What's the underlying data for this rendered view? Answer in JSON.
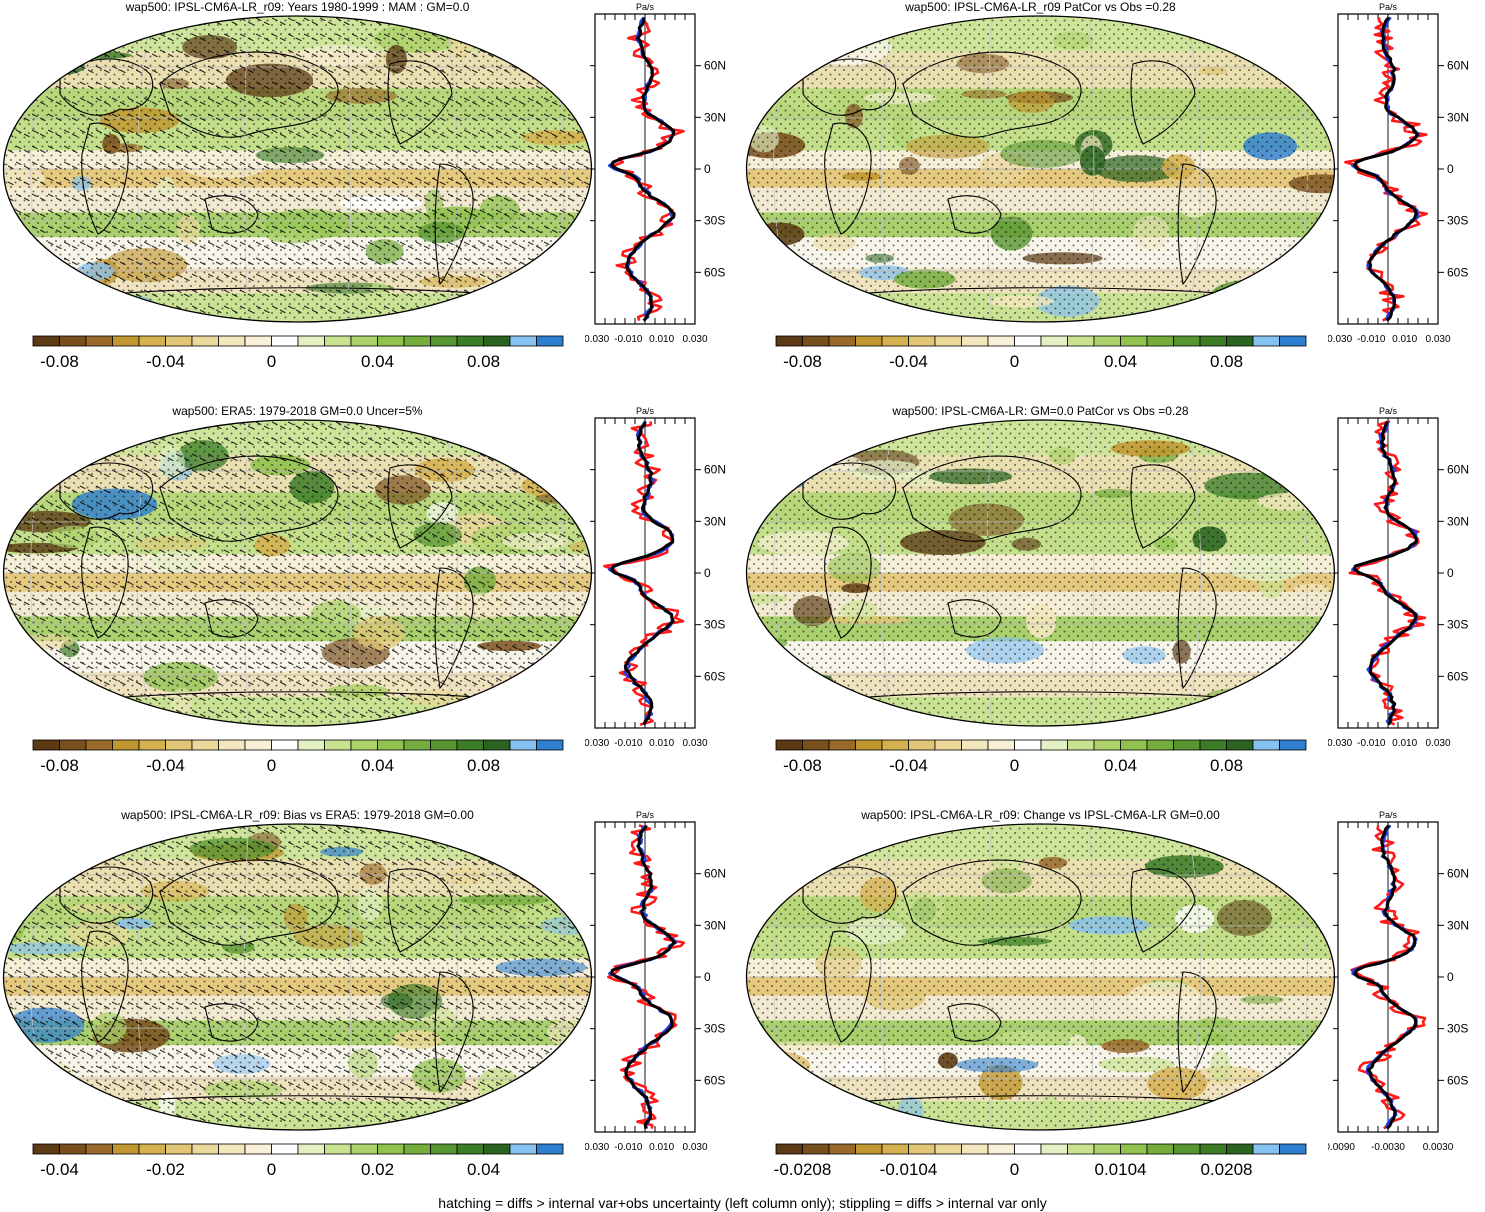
{
  "panels": [
    {
      "title": "wap500: IPSL-CM6A-LR_r09: Years 1980-1999 : MAM : GM=0.0",
      "hatched": true,
      "stippled": true,
      "seed": 3,
      "profile": {
        "units": "Pa/s",
        "lat_ticks": [
          "60N",
          "30N",
          "0",
          "30S",
          "60S"
        ],
        "x_ticks": [
          "-0.030",
          "-0.010",
          "0.010",
          "0.030"
        ],
        "xlim": [
          -0.03,
          0.03
        ],
        "lines": [
          "red",
          "blue",
          "black"
        ]
      },
      "colorbar": {
        "labels": [
          "-0.08",
          "-0.04",
          "0",
          "0.04",
          "0.08"
        ]
      }
    },
    {
      "title": "wap500: IPSL-CM6A-LR_r09 PatCor vs Obs =0.28",
      "hatched": false,
      "stippled": true,
      "seed": 7,
      "profile": {
        "units": "Pa/s",
        "lat_ticks": [
          "60N",
          "30N",
          "0",
          "30S",
          "60S"
        ],
        "x_ticks": [
          "-0.030",
          "-0.010",
          "0.010",
          "0.030"
        ],
        "xlim": [
          -0.03,
          0.03
        ],
        "lines": [
          "red",
          "blue",
          "black"
        ]
      },
      "colorbar": {
        "labels": [
          "-0.08",
          "-0.04",
          "0",
          "0.04",
          "0.08"
        ]
      }
    },
    {
      "title": "wap500: ERA5: 1979-2018 GM=0.0 Uncer=5%",
      "hatched": true,
      "stippled": true,
      "seed": 11,
      "profile": {
        "units": "Pa/s",
        "lat_ticks": [
          "60N",
          "30N",
          "0",
          "30S",
          "60S"
        ],
        "x_ticks": [
          "-0.030",
          "-0.010",
          "0.010",
          "0.030"
        ],
        "xlim": [
          -0.03,
          0.03
        ],
        "lines": [
          "red",
          "blue",
          "black"
        ]
      },
      "colorbar": {
        "labels": [
          "-0.08",
          "-0.04",
          "0",
          "0.04",
          "0.08"
        ]
      }
    },
    {
      "title": "wap500: IPSL-CM6A-LR: GM=0.0 PatCor vs Obs =0.28",
      "hatched": false,
      "stippled": true,
      "seed": 13,
      "profile": {
        "units": "Pa/s",
        "lat_ticks": [
          "60N",
          "30N",
          "0",
          "30S",
          "60S"
        ],
        "x_ticks": [
          "-0.030",
          "-0.010",
          "0.010",
          "0.030"
        ],
        "xlim": [
          -0.03,
          0.03
        ],
        "lines": [
          "red",
          "blue",
          "black"
        ]
      },
      "colorbar": {
        "labels": [
          "-0.08",
          "-0.04",
          "0",
          "0.04",
          "0.08"
        ]
      }
    },
    {
      "title": "wap500: IPSL-CM6A-LR_r09: Bias vs ERA5: 1979-2018 GM=0.00",
      "hatched": true,
      "stippled": true,
      "seed": 17,
      "profile": {
        "units": "Pa/s",
        "lat_ticks": [
          "60N",
          "30N",
          "0",
          "30S",
          "60S"
        ],
        "x_ticks": [
          "-0.030",
          "-0.010",
          "0.010",
          "0.030"
        ],
        "xlim": [
          -0.03,
          0.03
        ],
        "lines": [
          "red",
          "blue",
          "black"
        ]
      },
      "colorbar": {
        "labels": [
          "-0.04",
          "-0.02",
          "0",
          "0.02",
          "0.04"
        ]
      }
    },
    {
      "title": "wap500: IPSL-CM6A-LR_r09: Change vs IPSL-CM6A-LR GM=0.00",
      "hatched": false,
      "stippled": true,
      "seed": 19,
      "profile": {
        "units": "Pa/s",
        "lat_ticks": [
          "60N",
          "30N",
          "0",
          "30S",
          "60S"
        ],
        "x_ticks": [
          "-0.0090",
          "-0.0030",
          "0.0030"
        ],
        "xlim": [
          -0.009,
          0.009
        ],
        "lines": [
          "red",
          "blue",
          "black"
        ]
      },
      "colorbar": {
        "labels": [
          "-0.0208",
          "-0.0104",
          "0",
          "0.0104",
          "0.0208"
        ]
      }
    }
  ],
  "colorbar_colors": [
    "#5b3a14",
    "#7a4f1e",
    "#9a6a2a",
    "#c0962f",
    "#d5b04e",
    "#e0c676",
    "#ebd89a",
    "#f3e7bd",
    "#f8f0d7",
    "#ffffff",
    "#e3f0c4",
    "#c8e28f",
    "#add26b",
    "#91c24f",
    "#74ad3e",
    "#579531",
    "#3b7c27",
    "#2a6420",
    "#86c1ef",
    "#2f7fd0"
  ],
  "footnote": "hatching = diffs > internal var+obs uncertainty (left column only); stippling = diffs > internal var only"
}
